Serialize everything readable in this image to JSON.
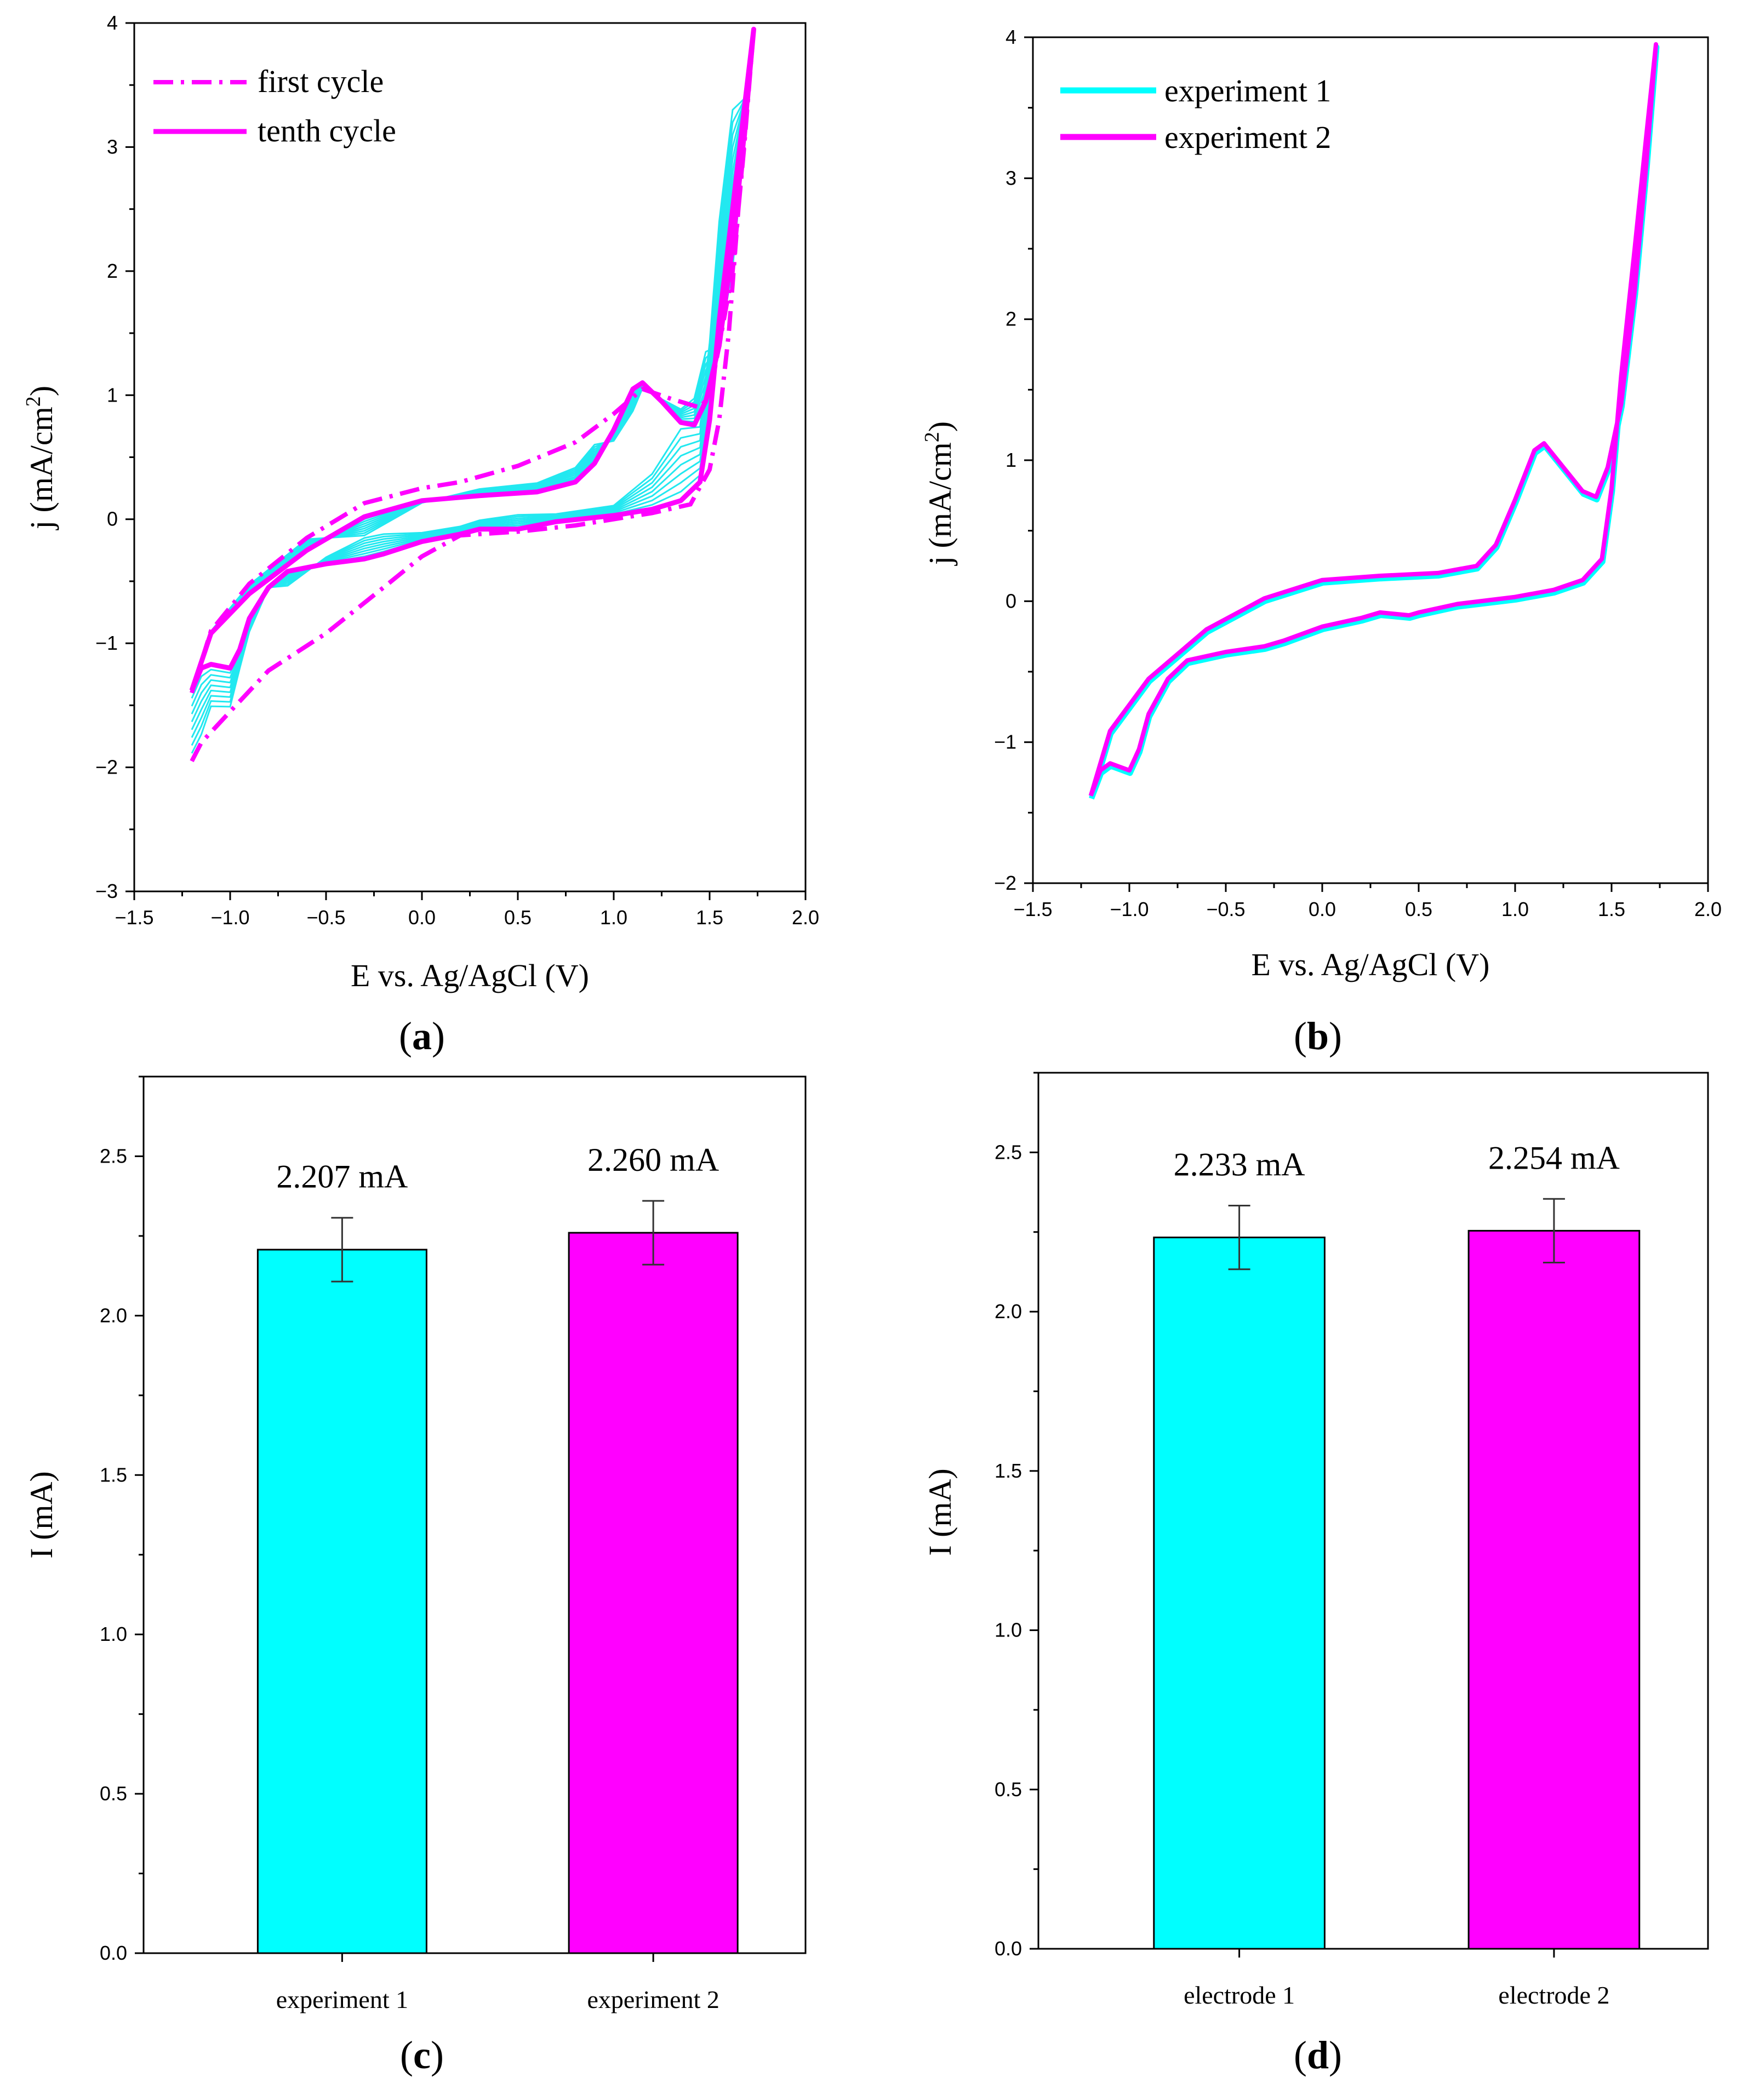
{
  "colors": {
    "cyan": "#00FFFF",
    "magenta": "#FF00FF",
    "cyan_line": "#22E8F0"
  },
  "chart_data": [
    {
      "panel": "a",
      "type": "line",
      "panel_label": "a",
      "xlabel": "E vs. Ag/AgCl (V)",
      "ylabel": "j (mA/cm",
      "ylabel_sup": "2",
      "ylabel_close": ")",
      "xlim": [
        -1.5,
        2.0
      ],
      "ylim": [
        -3,
        4
      ],
      "xticks": [
        "−1.5",
        "−1.0",
        "−0.5",
        "0.0",
        "0.5",
        "1.0",
        "1.5",
        "2.0"
      ],
      "yticks": [
        "−3",
        "−2",
        "−1",
        "0",
        "1",
        "2",
        "3",
        "4"
      ],
      "legend": [
        "first cycle",
        "tenth cycle"
      ],
      "series": [
        {
          "name": "first cycle",
          "style": "dashdot",
          "forward": [
            [
              -1.2,
              -1.95
            ],
            [
              -1.15,
              -1.8
            ],
            [
              -1.0,
              -1.55
            ],
            [
              -0.8,
              -1.22
            ],
            [
              -0.5,
              -0.92
            ],
            [
              -0.2,
              -0.55
            ],
            [
              0.0,
              -0.3
            ],
            [
              0.2,
              -0.13
            ],
            [
              0.5,
              -0.1
            ],
            [
              0.8,
              -0.05
            ],
            [
              1.0,
              0.0
            ],
            [
              1.2,
              0.05
            ],
            [
              1.4,
              0.12
            ],
            [
              1.5,
              0.4
            ],
            [
              1.55,
              0.8
            ],
            [
              1.6,
              1.5
            ],
            [
              1.65,
              2.5
            ],
            [
              1.7,
              3.4
            ],
            [
              1.73,
              3.95
            ]
          ],
          "backward": [
            [
              1.73,
              3.95
            ],
            [
              1.68,
              3.0
            ],
            [
              1.62,
              2.0
            ],
            [
              1.55,
              1.4
            ],
            [
              1.5,
              1.0
            ],
            [
              1.45,
              0.9
            ],
            [
              1.3,
              0.97
            ],
            [
              1.15,
              1.05
            ],
            [
              1.0,
              0.85
            ],
            [
              0.8,
              0.62
            ],
            [
              0.5,
              0.43
            ],
            [
              0.2,
              0.3
            ],
            [
              0.0,
              0.25
            ],
            [
              -0.3,
              0.13
            ],
            [
              -0.6,
              -0.15
            ],
            [
              -0.9,
              -0.52
            ],
            [
              -1.1,
              -0.9
            ],
            [
              -1.2,
              -1.4
            ]
          ]
        },
        {
          "name": "tenth cycle",
          "style": "solid",
          "forward": [
            [
              -1.2,
              -1.38
            ],
            [
              -1.15,
              -1.2
            ],
            [
              -1.1,
              -1.17
            ],
            [
              -1.0,
              -1.2
            ],
            [
              -0.95,
              -1.05
            ],
            [
              -0.9,
              -0.8
            ],
            [
              -0.8,
              -0.55
            ],
            [
              -0.7,
              -0.42
            ],
            [
              -0.5,
              -0.36
            ],
            [
              -0.3,
              -0.32
            ],
            [
              -0.2,
              -0.28
            ],
            [
              0.0,
              -0.18
            ],
            [
              0.2,
              -0.12
            ],
            [
              0.3,
              -0.08
            ],
            [
              0.5,
              -0.08
            ],
            [
              0.7,
              -0.02
            ],
            [
              1.0,
              0.03
            ],
            [
              1.2,
              0.08
            ],
            [
              1.35,
              0.15
            ],
            [
              1.45,
              0.3
            ],
            [
              1.5,
              0.8
            ],
            [
              1.55,
              1.6
            ],
            [
              1.62,
              2.5
            ],
            [
              1.68,
              3.3
            ],
            [
              1.73,
              3.95
            ]
          ],
          "backward": [
            [
              1.73,
              3.95
            ],
            [
              1.68,
              3.1
            ],
            [
              1.62,
              2.2
            ],
            [
              1.55,
              1.4
            ],
            [
              1.48,
              0.95
            ],
            [
              1.42,
              0.76
            ],
            [
              1.35,
              0.78
            ],
            [
              1.25,
              0.95
            ],
            [
              1.15,
              1.1
            ],
            [
              1.1,
              1.05
            ],
            [
              1.0,
              0.72
            ],
            [
              0.9,
              0.45
            ],
            [
              0.8,
              0.3
            ],
            [
              0.6,
              0.22
            ],
            [
              0.3,
              0.19
            ],
            [
              0.0,
              0.15
            ],
            [
              -0.3,
              0.02
            ],
            [
              -0.6,
              -0.25
            ],
            [
              -0.9,
              -0.6
            ],
            [
              -1.1,
              -0.92
            ],
            [
              -1.2,
              -1.38
            ]
          ]
        },
        {
          "name": "intermediate cycles",
          "style": "thin",
          "count": 8
        }
      ]
    },
    {
      "panel": "b",
      "type": "line",
      "panel_label": "b",
      "xlabel": "E vs. Ag/AgCl (V)",
      "ylabel": "j (mA/cm",
      "ylabel_sup": "2",
      "ylabel_close": ")",
      "xlim": [
        -1.5,
        2.0
      ],
      "ylim": [
        -2,
        4
      ],
      "xticks": [
        "−1.5",
        "−1.0",
        "−0.5",
        "0.0",
        "0.5",
        "1.0",
        "1.5",
        "2.0"
      ],
      "yticks": [
        "−2",
        "−1",
        "0",
        "1",
        "2",
        "3",
        "4"
      ],
      "legend": [
        "experiment 1",
        "experiment 2"
      ],
      "series": [
        {
          "name": "experiment 1 / experiment 2",
          "forward": [
            [
              -1.2,
              -1.38
            ],
            [
              -1.15,
              -1.2
            ],
            [
              -1.1,
              -1.15
            ],
            [
              -1.0,
              -1.2
            ],
            [
              -0.95,
              -1.05
            ],
            [
              -0.9,
              -0.8
            ],
            [
              -0.8,
              -0.55
            ],
            [
              -0.7,
              -0.42
            ],
            [
              -0.5,
              -0.36
            ],
            [
              -0.3,
              -0.32
            ],
            [
              -0.2,
              -0.28
            ],
            [
              0.0,
              -0.18
            ],
            [
              0.2,
              -0.12
            ],
            [
              0.3,
              -0.08
            ],
            [
              0.45,
              -0.1
            ],
            [
              0.5,
              -0.08
            ],
            [
              0.7,
              -0.02
            ],
            [
              1.0,
              0.03
            ],
            [
              1.2,
              0.08
            ],
            [
              1.35,
              0.15
            ],
            [
              1.45,
              0.3
            ],
            [
              1.5,
              0.8
            ],
            [
              1.55,
              1.6
            ],
            [
              1.62,
              2.5
            ],
            [
              1.68,
              3.3
            ],
            [
              1.73,
              3.95
            ]
          ],
          "backward": [
            [
              1.73,
              3.95
            ],
            [
              1.68,
              3.1
            ],
            [
              1.62,
              2.2
            ],
            [
              1.55,
              1.4
            ],
            [
              1.48,
              0.95
            ],
            [
              1.42,
              0.74
            ],
            [
              1.35,
              0.78
            ],
            [
              1.25,
              0.95
            ],
            [
              1.15,
              1.12
            ],
            [
              1.1,
              1.07
            ],
            [
              1.0,
              0.72
            ],
            [
              0.9,
              0.4
            ],
            [
              0.8,
              0.25
            ],
            [
              0.6,
              0.2
            ],
            [
              0.3,
              0.18
            ],
            [
              0.0,
              0.15
            ],
            [
              -0.3,
              0.02
            ],
            [
              -0.6,
              -0.2
            ],
            [
              -0.9,
              -0.55
            ],
            [
              -1.1,
              -0.92
            ],
            [
              -1.2,
              -1.38
            ]
          ]
        }
      ]
    },
    {
      "panel": "c",
      "type": "bar",
      "panel_label": "c",
      "ylabel": "I (mA)",
      "ylim": [
        0.0,
        2.75
      ],
      "yticks": [
        "0.0",
        "0.5",
        "1.0",
        "1.5",
        "2.0",
        "2.5"
      ],
      "categories": [
        "experiment 1",
        "experiment 2"
      ],
      "values": [
        2.207,
        2.26
      ],
      "errors": [
        0.1,
        0.1
      ],
      "value_labels": [
        "2.207 mA",
        "2.260 mA"
      ]
    },
    {
      "panel": "d",
      "type": "bar",
      "panel_label": "d",
      "ylabel": "I (mA)",
      "ylim": [
        0.0,
        2.75
      ],
      "yticks": [
        "0.0",
        "0.5",
        "1.0",
        "1.5",
        "2.0",
        "2.5"
      ],
      "categories": [
        "electrode 1",
        "electrode 2"
      ],
      "values": [
        2.233,
        2.254
      ],
      "errors": [
        0.1,
        0.1
      ],
      "value_labels": [
        "2.233 mA",
        "2.254 mA"
      ]
    }
  ]
}
